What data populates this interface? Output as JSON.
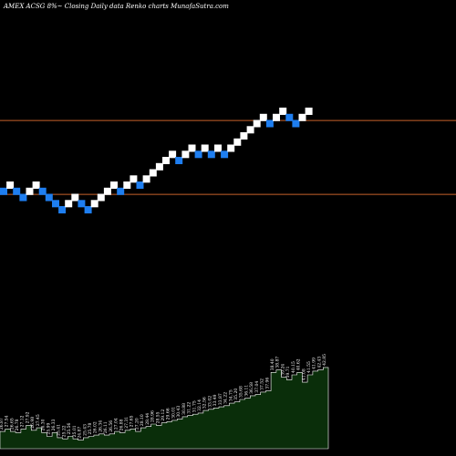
{
  "header": {
    "text": "AMEX  ACSG 8%~  Closing Daily data  Renko  charts MunafaSutra.com"
  },
  "colors": {
    "background": "#000000",
    "up_brick": "#ffffff",
    "down_brick": "#1e7ef0",
    "reference_line": "#c8622a",
    "volume_fill": "#0a2e0a",
    "volume_edge": "#ffffff"
  },
  "chart_data": {
    "type": "renko",
    "title": "AMEX  ACSG 8%~  Closing Daily data  Renko  charts MunafaSutra.com",
    "price_range": [
      0,
      47
    ],
    "reference_lines": [
      26.5,
      38.5
    ],
    "bricks": [
      {
        "dir": "down",
        "level": 27
      },
      {
        "dir": "up",
        "level": 28
      },
      {
        "dir": "down",
        "level": 27
      },
      {
        "dir": "down",
        "level": 26
      },
      {
        "dir": "up",
        "level": 27
      },
      {
        "dir": "up",
        "level": 28
      },
      {
        "dir": "down",
        "level": 27
      },
      {
        "dir": "down",
        "level": 26
      },
      {
        "dir": "down",
        "level": 25
      },
      {
        "dir": "down",
        "level": 24
      },
      {
        "dir": "up",
        "level": 25
      },
      {
        "dir": "up",
        "level": 26
      },
      {
        "dir": "down",
        "level": 25
      },
      {
        "dir": "down",
        "level": 24
      },
      {
        "dir": "up",
        "level": 25
      },
      {
        "dir": "up",
        "level": 26
      },
      {
        "dir": "up",
        "level": 27
      },
      {
        "dir": "up",
        "level": 28
      },
      {
        "dir": "down",
        "level": 27
      },
      {
        "dir": "up",
        "level": 28
      },
      {
        "dir": "up",
        "level": 29
      },
      {
        "dir": "down",
        "level": 28
      },
      {
        "dir": "up",
        "level": 29
      },
      {
        "dir": "up",
        "level": 30
      },
      {
        "dir": "up",
        "level": 31
      },
      {
        "dir": "up",
        "level": 32
      },
      {
        "dir": "up",
        "level": 33
      },
      {
        "dir": "down",
        "level": 32
      },
      {
        "dir": "up",
        "level": 33
      },
      {
        "dir": "up",
        "level": 34
      },
      {
        "dir": "down",
        "level": 33
      },
      {
        "dir": "up",
        "level": 34
      },
      {
        "dir": "down",
        "level": 33
      },
      {
        "dir": "up",
        "level": 34
      },
      {
        "dir": "down",
        "level": 33
      },
      {
        "dir": "up",
        "level": 34
      },
      {
        "dir": "up",
        "level": 35
      },
      {
        "dir": "up",
        "level": 36
      },
      {
        "dir": "up",
        "level": 37
      },
      {
        "dir": "up",
        "level": 38
      },
      {
        "dir": "up",
        "level": 39
      },
      {
        "dir": "down",
        "level": 38
      },
      {
        "dir": "up",
        "level": 39
      },
      {
        "dir": "up",
        "level": 40
      },
      {
        "dir": "down",
        "level": 39
      },
      {
        "dir": "down",
        "level": 38
      },
      {
        "dir": "up",
        "level": 39
      },
      {
        "dir": "up",
        "level": 40
      }
    ],
    "volume_labels": [
      "26.87",
      "27.54",
      "26.65",
      "26.78",
      "27.12",
      "27.92",
      "26.98",
      "27.45",
      "26.30",
      "25.99",
      "26.33",
      "25.41",
      "25.22",
      "25.56",
      "25.01",
      "24.87",
      "25.43",
      "25.78",
      "26.02",
      "26.34",
      "26.11",
      "26.56",
      "27.04",
      "26.88",
      "27.31",
      "27.65",
      "27.20",
      "28.10",
      "28.44",
      "28.96",
      "28.55",
      "29.12",
      "29.66",
      "30.01",
      "30.43",
      "30.88",
      "31.22",
      "31.75",
      "32.14",
      "32.56",
      "33.02",
      "33.49",
      "33.87",
      "34.22",
      "34.75",
      "35.20",
      "35.68",
      "36.11",
      "36.58",
      "37.04",
      "37.52",
      "37.96",
      "38.40",
      "38.87",
      "39.24",
      "39.71",
      "40.15",
      "40.62",
      "41.08",
      "41.55",
      "41.99",
      "42.43",
      "42.85"
    ],
    "volume_values": [
      14,
      16,
      14,
      13,
      16,
      19,
      15,
      17,
      13,
      10,
      13,
      9,
      8,
      10,
      8,
      7,
      9,
      10,
      11,
      12,
      11,
      12,
      14,
      13,
      15,
      16,
      14,
      17,
      18,
      20,
      19,
      21,
      22,
      23,
      24,
      26,
      27,
      28,
      29,
      31,
      32,
      33,
      34,
      35,
      37,
      38,
      40,
      41,
      43,
      44,
      46,
      47,
      62,
      64,
      58,
      56,
      60,
      62,
      54,
      60,
      63,
      64,
      66
    ]
  }
}
